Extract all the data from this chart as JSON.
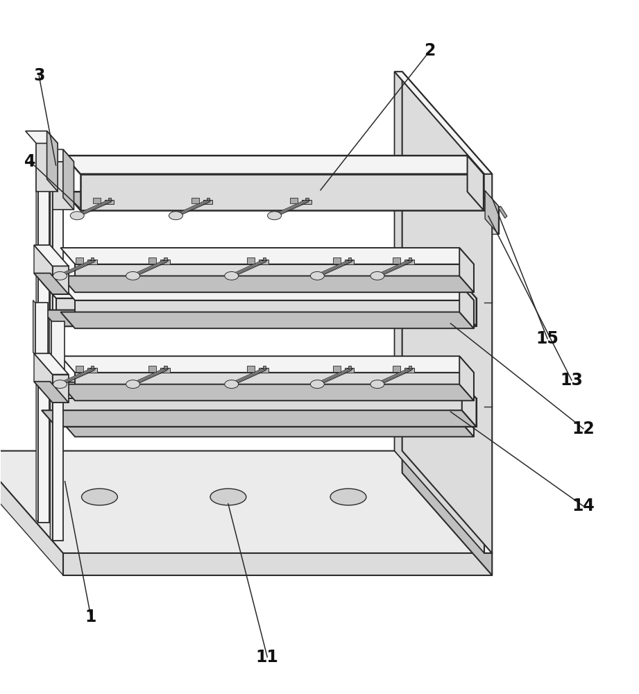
{
  "bg": "#ffffff",
  "lc": "#2a2a2a",
  "fl": "#f4f4f4",
  "fm": "#dcdcdc",
  "fd": "#c0c0c0",
  "fdd": "#aaaaaa",
  "figsize": [
    9.21,
    10.0
  ],
  "dpi": 100
}
